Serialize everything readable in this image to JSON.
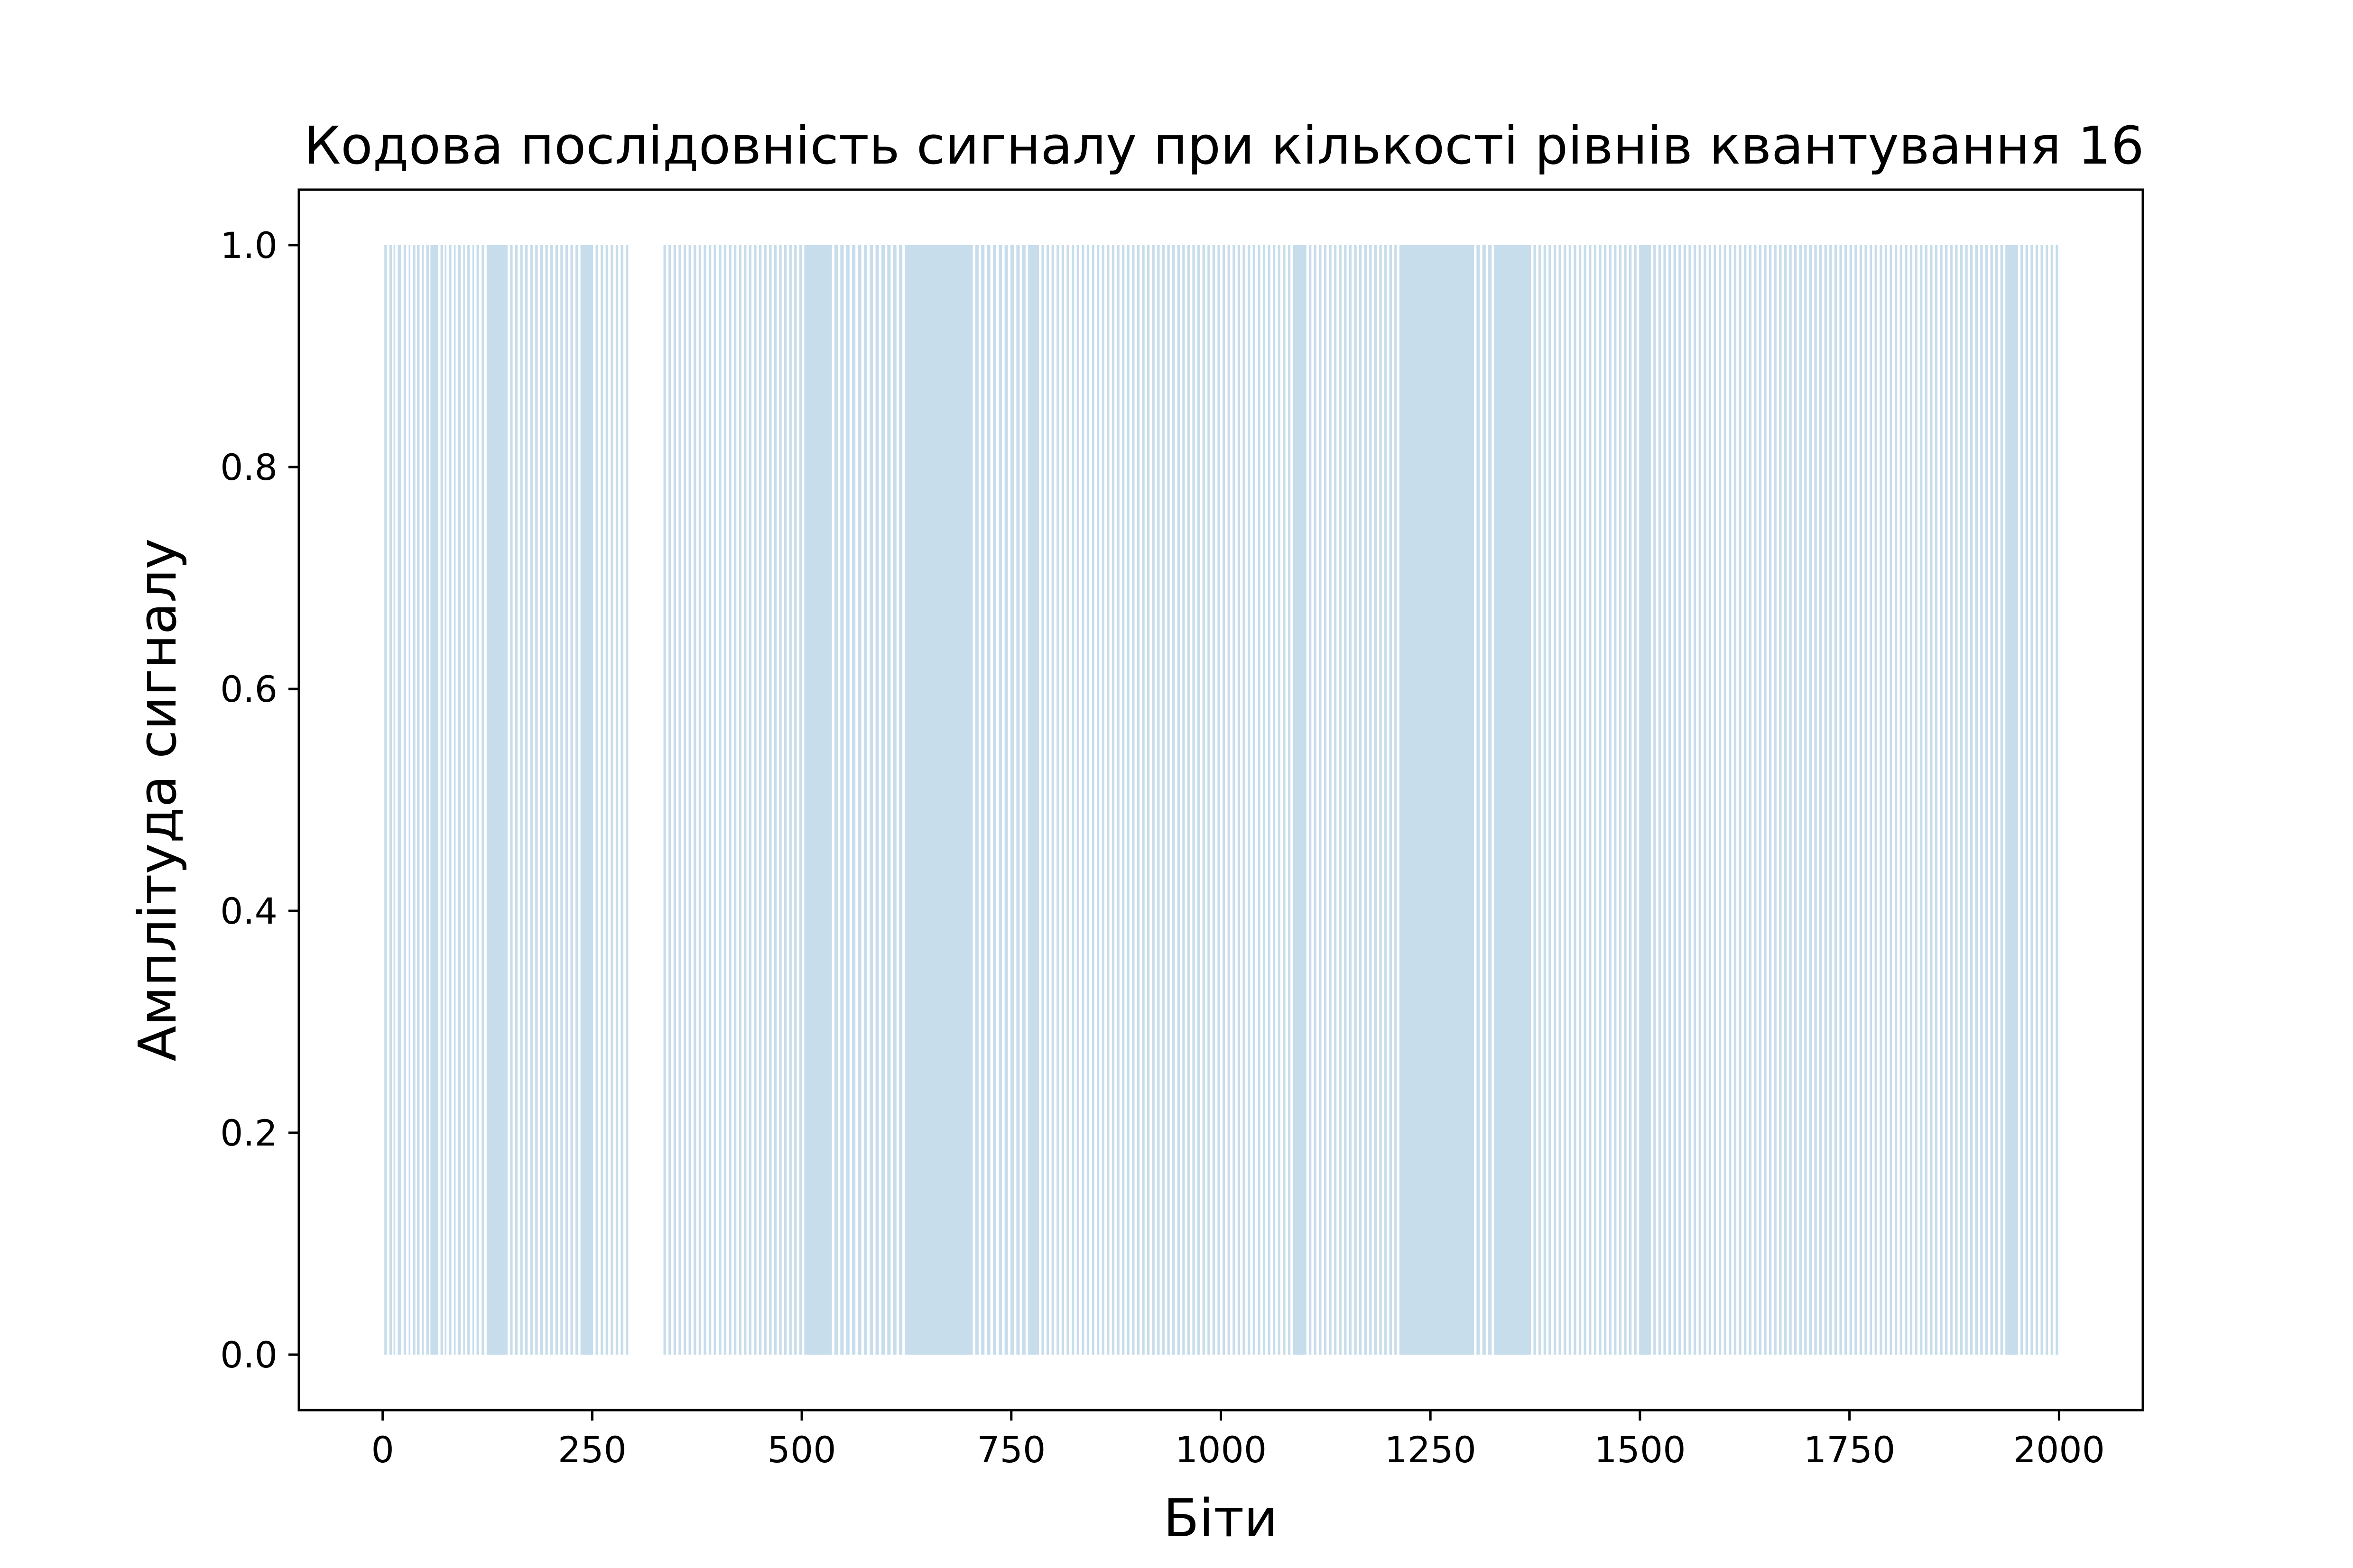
{
  "chart_data": {
    "type": "bar",
    "title": "Кодова послідовність сигналу при кількості рівнів квантування 16",
    "xlabel": "Біти",
    "ylabel": "Амплітуда сигналу",
    "xlim": [
      -100,
      2100
    ],
    "ylim": [
      -0.05,
      1.05
    ],
    "xticks": [
      0,
      250,
      500,
      750,
      1000,
      1250,
      1500,
      1750,
      2000
    ],
    "xtick_labels": [
      "0",
      "250",
      "500",
      "750",
      "1000",
      "1250",
      "1500",
      "1750",
      "2000"
    ],
    "yticks": [
      0.0,
      0.2,
      0.4,
      0.6,
      0.8,
      1.0
    ],
    "ytick_labels": [
      "0.0",
      "0.2",
      "0.4",
      "0.6",
      "0.8",
      "1.0"
    ],
    "grid": false,
    "bar_color": "#1f77b4",
    "bar_opacity": 0.25,
    "bit_count": 2000,
    "one_runs": [
      [
        2,
        4
      ],
      [
        8,
        10
      ],
      [
        13,
        14
      ],
      [
        18,
        21
      ],
      [
        25,
        27
      ],
      [
        31,
        32
      ],
      [
        36,
        38
      ],
      [
        41,
        43
      ],
      [
        47,
        48
      ],
      [
        52,
        54
      ],
      [
        57,
        65
      ],
      [
        69,
        71
      ],
      [
        74,
        75
      ],
      [
        79,
        81
      ],
      [
        85,
        86
      ],
      [
        90,
        92
      ],
      [
        96,
        97
      ],
      [
        101,
        103
      ],
      [
        107,
        108
      ],
      [
        112,
        114
      ],
      [
        118,
        120
      ],
      [
        124,
        148
      ],
      [
        152,
        154
      ],
      [
        158,
        160
      ],
      [
        164,
        166
      ],
      [
        170,
        172
      ],
      [
        176,
        178
      ],
      [
        182,
        184
      ],
      [
        188,
        190
      ],
      [
        194,
        196
      ],
      [
        200,
        202
      ],
      [
        206,
        208
      ],
      [
        212,
        214
      ],
      [
        218,
        220
      ],
      [
        224,
        226
      ],
      [
        230,
        232
      ],
      [
        236,
        250
      ],
      [
        254,
        256
      ],
      [
        260,
        262
      ],
      [
        266,
        268
      ],
      [
        272,
        274
      ],
      [
        278,
        280
      ],
      [
        284,
        286
      ],
      [
        290,
        292
      ],
      [
        335,
        337
      ],
      [
        341,
        343
      ],
      [
        347,
        349
      ],
      [
        353,
        355
      ],
      [
        359,
        361
      ],
      [
        365,
        367
      ],
      [
        371,
        373
      ],
      [
        377,
        379
      ],
      [
        383,
        385
      ],
      [
        389,
        391
      ],
      [
        395,
        397
      ],
      [
        401,
        403
      ],
      [
        407,
        409
      ],
      [
        413,
        415
      ],
      [
        419,
        421
      ],
      [
        425,
        427
      ],
      [
        431,
        433
      ],
      [
        437,
        439
      ],
      [
        443,
        445
      ],
      [
        449,
        451
      ],
      [
        455,
        457
      ],
      [
        461,
        463
      ],
      [
        467,
        469
      ],
      [
        473,
        475
      ],
      [
        479,
        481
      ],
      [
        485,
        487
      ],
      [
        491,
        493
      ],
      [
        497,
        499
      ],
      [
        503,
        535
      ],
      [
        539,
        542
      ],
      [
        546,
        549
      ],
      [
        553,
        556
      ],
      [
        560,
        563
      ],
      [
        567,
        570
      ],
      [
        574,
        577
      ],
      [
        581,
        584
      ],
      [
        588,
        591
      ],
      [
        595,
        598
      ],
      [
        602,
        605
      ],
      [
        609,
        612
      ],
      [
        616,
        619
      ],
      [
        623,
        703
      ],
      [
        707,
        710
      ],
      [
        714,
        717
      ],
      [
        721,
        724
      ],
      [
        728,
        731
      ],
      [
        735,
        738
      ],
      [
        742,
        745
      ],
      [
        749,
        752
      ],
      [
        756,
        759
      ],
      [
        763,
        766
      ],
      [
        770,
        782
      ],
      [
        786,
        788
      ],
      [
        792,
        794
      ],
      [
        798,
        800
      ],
      [
        804,
        806
      ],
      [
        810,
        812
      ],
      [
        816,
        818
      ],
      [
        822,
        824
      ],
      [
        828,
        830
      ],
      [
        834,
        836
      ],
      [
        840,
        842
      ],
      [
        846,
        848
      ],
      [
        852,
        854
      ],
      [
        858,
        860
      ],
      [
        864,
        866
      ],
      [
        870,
        872
      ],
      [
        876,
        878
      ],
      [
        882,
        884
      ],
      [
        888,
        890
      ],
      [
        894,
        896
      ],
      [
        900,
        902
      ],
      [
        906,
        908
      ],
      [
        912,
        914
      ],
      [
        918,
        920
      ],
      [
        924,
        926
      ],
      [
        930,
        932
      ],
      [
        936,
        938
      ],
      [
        942,
        944
      ],
      [
        948,
        950
      ],
      [
        954,
        956
      ],
      [
        960,
        962
      ],
      [
        966,
        968
      ],
      [
        972,
        974
      ],
      [
        978,
        980
      ],
      [
        984,
        986
      ],
      [
        990,
        992
      ],
      [
        996,
        998
      ],
      [
        1002,
        1004
      ],
      [
        1008,
        1010
      ],
      [
        1014,
        1016
      ],
      [
        1020,
        1022
      ],
      [
        1026,
        1028
      ],
      [
        1032,
        1034
      ],
      [
        1038,
        1040
      ],
      [
        1044,
        1046
      ],
      [
        1050,
        1052
      ],
      [
        1056,
        1058
      ],
      [
        1062,
        1064
      ],
      [
        1068,
        1070
      ],
      [
        1074,
        1076
      ],
      [
        1080,
        1082
      ],
      [
        1086,
        1101
      ],
      [
        1105,
        1107
      ],
      [
        1111,
        1113
      ],
      [
        1117,
        1119
      ],
      [
        1123,
        1125
      ],
      [
        1129,
        1131
      ],
      [
        1135,
        1137
      ],
      [
        1141,
        1143
      ],
      [
        1147,
        1149
      ],
      [
        1153,
        1155
      ],
      [
        1159,
        1161
      ],
      [
        1165,
        1167
      ],
      [
        1171,
        1173
      ],
      [
        1177,
        1179
      ],
      [
        1183,
        1185
      ],
      [
        1189,
        1191
      ],
      [
        1195,
        1197
      ],
      [
        1201,
        1203
      ],
      [
        1207,
        1209
      ],
      [
        1213,
        1301
      ],
      [
        1305,
        1308
      ],
      [
        1312,
        1315
      ],
      [
        1319,
        1322
      ],
      [
        1326,
        1369
      ],
      [
        1373,
        1375
      ],
      [
        1379,
        1381
      ],
      [
        1385,
        1387
      ],
      [
        1391,
        1393
      ],
      [
        1397,
        1399
      ],
      [
        1403,
        1405
      ],
      [
        1409,
        1411
      ],
      [
        1415,
        1417
      ],
      [
        1421,
        1423
      ],
      [
        1427,
        1429
      ],
      [
        1433,
        1435
      ],
      [
        1439,
        1441
      ],
      [
        1445,
        1447
      ],
      [
        1451,
        1453
      ],
      [
        1457,
        1459
      ],
      [
        1463,
        1465
      ],
      [
        1469,
        1471
      ],
      [
        1475,
        1477
      ],
      [
        1481,
        1483
      ],
      [
        1487,
        1489
      ],
      [
        1493,
        1495
      ],
      [
        1499,
        1512
      ],
      [
        1516,
        1518
      ],
      [
        1522,
        1524
      ],
      [
        1528,
        1530
      ],
      [
        1534,
        1536
      ],
      [
        1540,
        1542
      ],
      [
        1546,
        1548
      ],
      [
        1552,
        1554
      ],
      [
        1558,
        1560
      ],
      [
        1564,
        1566
      ],
      [
        1570,
        1572
      ],
      [
        1576,
        1578
      ],
      [
        1582,
        1584
      ],
      [
        1588,
        1590
      ],
      [
        1594,
        1596
      ],
      [
        1600,
        1602
      ],
      [
        1606,
        1608
      ],
      [
        1612,
        1614
      ],
      [
        1618,
        1620
      ],
      [
        1624,
        1626
      ],
      [
        1630,
        1632
      ],
      [
        1636,
        1638
      ],
      [
        1642,
        1644
      ],
      [
        1648,
        1650
      ],
      [
        1654,
        1656
      ],
      [
        1660,
        1662
      ],
      [
        1666,
        1668
      ],
      [
        1672,
        1674
      ],
      [
        1678,
        1680
      ],
      [
        1684,
        1686
      ],
      [
        1690,
        1692
      ],
      [
        1696,
        1698
      ],
      [
        1702,
        1704
      ],
      [
        1708,
        1710
      ],
      [
        1714,
        1716
      ],
      [
        1720,
        1722
      ],
      [
        1726,
        1728
      ],
      [
        1732,
        1734
      ],
      [
        1738,
        1740
      ],
      [
        1744,
        1746
      ],
      [
        1750,
        1752
      ],
      [
        1756,
        1758
      ],
      [
        1762,
        1764
      ],
      [
        1768,
        1770
      ],
      [
        1774,
        1776
      ],
      [
        1780,
        1782
      ],
      [
        1786,
        1788
      ],
      [
        1792,
        1794
      ],
      [
        1798,
        1800
      ],
      [
        1804,
        1806
      ],
      [
        1810,
        1812
      ],
      [
        1816,
        1818
      ],
      [
        1822,
        1824
      ],
      [
        1828,
        1830
      ],
      [
        1834,
        1836
      ],
      [
        1840,
        1842
      ],
      [
        1846,
        1848
      ],
      [
        1852,
        1854
      ],
      [
        1858,
        1860
      ],
      [
        1864,
        1866
      ],
      [
        1870,
        1872
      ],
      [
        1876,
        1878
      ],
      [
        1882,
        1884
      ],
      [
        1888,
        1890
      ],
      [
        1894,
        1896
      ],
      [
        1900,
        1902
      ],
      [
        1906,
        1908
      ],
      [
        1912,
        1914
      ],
      [
        1918,
        1920
      ],
      [
        1924,
        1926
      ],
      [
        1930,
        1932
      ],
      [
        1936,
        1950
      ],
      [
        1954,
        1956
      ],
      [
        1960,
        1962
      ],
      [
        1966,
        1968
      ],
      [
        1972,
        1974
      ],
      [
        1978,
        1980
      ],
      [
        1984,
        1986
      ],
      [
        1990,
        1992
      ],
      [
        1996,
        1998
      ]
    ]
  }
}
